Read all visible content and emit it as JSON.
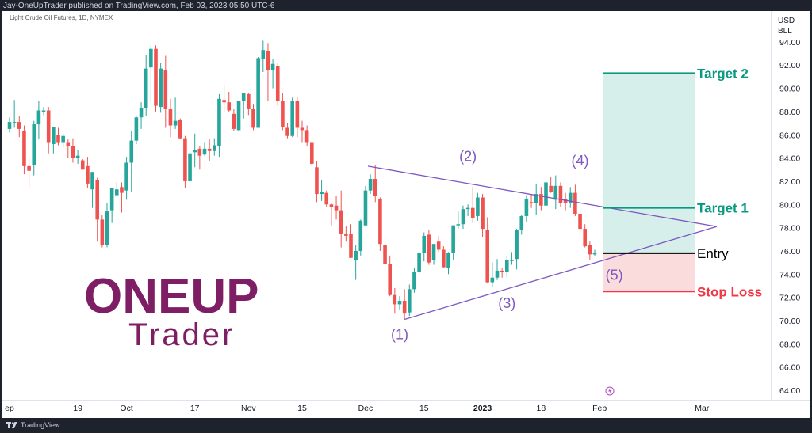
{
  "header": {
    "publish_line": "Jay-OneUpTrader published on TradingView.com, Feb 03, 2023 05:50 UTC-6",
    "symbol_line": "Light Crude Oil Futures, 1D, NYMEX"
  },
  "footer": {
    "brand": "TradingView"
  },
  "logo": {
    "line1": "ONEUP",
    "line2": "Trader"
  },
  "colors": {
    "up": "#26a69a",
    "down": "#ef5350",
    "pattern": "#7e57c2",
    "target": "#089981",
    "stop": "#f23645",
    "entry": "#000000",
    "target_zone": "#d6efea",
    "stop_zone": "#fbdcdc",
    "logo": "#7e1e64"
  },
  "chart_data": {
    "type": "candlestick",
    "yaxis": {
      "unit_lines": [
        "USD",
        "BLL"
      ],
      "ticks": [
        64,
        66,
        68,
        70,
        72,
        74,
        76,
        78,
        80,
        82,
        84,
        86,
        88,
        90,
        92,
        94
      ],
      "range": [
        63,
        96
      ]
    },
    "xaxis": {
      "labels": [
        {
          "i": 0,
          "text": "ep"
        },
        {
          "i": 14,
          "text": "19"
        },
        {
          "i": 24,
          "text": "Oct"
        },
        {
          "i": 38,
          "text": "17"
        },
        {
          "i": 49,
          "text": "Nov"
        },
        {
          "i": 60,
          "text": "15"
        },
        {
          "i": 73,
          "text": "Dec"
        },
        {
          "i": 85,
          "text": "15"
        },
        {
          "i": 97,
          "text": "2023"
        },
        {
          "i": 109,
          "text": "18"
        },
        {
          "i": 121,
          "text": "Feb"
        },
        {
          "i": 142,
          "text": "Mar"
        }
      ]
    },
    "last_price": 75.8,
    "ohlc": [
      [
        86.5,
        87.5,
        86.2,
        87.1
      ],
      [
        87.1,
        89.0,
        86.6,
        87.1
      ],
      [
        87.1,
        87.6,
        85.8,
        86.5
      ],
      [
        86.3,
        86.8,
        82.6,
        83.3
      ],
      [
        83.3,
        84.0,
        81.4,
        82.9
      ],
      [
        83.4,
        87.2,
        82.5,
        86.9
      ],
      [
        86.9,
        88.9,
        85.6,
        88.1
      ],
      [
        88.0,
        88.4,
        87.7,
        88.1
      ],
      [
        88.1,
        88.4,
        84.4,
        85.3
      ],
      [
        85.2,
        86.7,
        84.4,
        86.7
      ],
      [
        86.0,
        86.6,
        85.1,
        85.3
      ],
      [
        85.3,
        86.1,
        84.9,
        85.9
      ],
      [
        85.3,
        85.6,
        84.0,
        85.0
      ],
      [
        85.0,
        85.7,
        83.6,
        84.0
      ],
      [
        84.0,
        84.7,
        83.5,
        84.2
      ],
      [
        83.8,
        83.9,
        83.0,
        83.0
      ],
      [
        83.3,
        84.1,
        81.4,
        81.8
      ],
      [
        81.3,
        82.8,
        79.7,
        82.8
      ],
      [
        82.1,
        82.3,
        76.8,
        78.7
      ],
      [
        78.7,
        79.1,
        76.3,
        76.5
      ],
      [
        76.5,
        80.1,
        76.3,
        79.4
      ],
      [
        79.5,
        81.4,
        78.4,
        81.4
      ],
      [
        80.8,
        81.9,
        80.7,
        81.3
      ],
      [
        81.5,
        81.9,
        79.3,
        81.0
      ],
      [
        81.2,
        84.1,
        80.4,
        83.6
      ],
      [
        83.6,
        86.3,
        81.1,
        85.5
      ],
      [
        85.5,
        87.6,
        85.2,
        87.5
      ],
      [
        87.5,
        88.8,
        86.5,
        88.3
      ],
      [
        88.3,
        92.9,
        87.6,
        91.7
      ],
      [
        91.8,
        93.7,
        88.8,
        93.4
      ],
      [
        93.4,
        93.7,
        88.0,
        88.5
      ],
      [
        88.4,
        92.2,
        87.9,
        91.7
      ],
      [
        91.6,
        92.8,
        86.6,
        88.2
      ],
      [
        88.2,
        89.1,
        85.8,
        86.8
      ],
      [
        86.8,
        89.2,
        86.5,
        87.2
      ],
      [
        87.3,
        87.4,
        85.6,
        85.7
      ],
      [
        85.7,
        85.9,
        81.4,
        82.0
      ],
      [
        82.0,
        84.6,
        81.4,
        84.4
      ],
      [
        84.5,
        86.1,
        83.2,
        84.7
      ],
      [
        84.8,
        85.0,
        83.0,
        84.2
      ],
      [
        84.3,
        85.3,
        84.2,
        84.8
      ],
      [
        84.8,
        85.6,
        83.7,
        84.6
      ],
      [
        84.6,
        85.7,
        84.2,
        85.1
      ],
      [
        85.0,
        89.5,
        84.1,
        89.1
      ],
      [
        89.0,
        90.3,
        87.9,
        88.8
      ],
      [
        88.8,
        89.7,
        88.0,
        88.1
      ],
      [
        87.8,
        88.2,
        86.3,
        86.5
      ],
      [
        86.4,
        88.9,
        86.3,
        88.9
      ],
      [
        88.9,
        89.5,
        87.4,
        89.6
      ],
      [
        89.5,
        89.6,
        87.7,
        88.2
      ],
      [
        88.2,
        88.6,
        86.4,
        86.6
      ],
      [
        86.6,
        92.7,
        86.6,
        92.6
      ],
      [
        92.5,
        94.1,
        91.4,
        93.3
      ],
      [
        93.2,
        93.9,
        88.9,
        91.6
      ],
      [
        91.6,
        92.5,
        90.0,
        92.1
      ],
      [
        91.9,
        92.2,
        88.5,
        88.9
      ],
      [
        88.9,
        89.6,
        86.4,
        86.7
      ],
      [
        86.6,
        87.0,
        85.7,
        85.9
      ],
      [
        85.9,
        89.2,
        85.8,
        88.9
      ],
      [
        88.9,
        89.3,
        85.8,
        86.6
      ],
      [
        86.6,
        87.2,
        85.3,
        86.4
      ],
      [
        86.4,
        86.8,
        85.0,
        85.3
      ],
      [
        85.3,
        85.4,
        83.4,
        83.5
      ],
      [
        83.2,
        83.7,
        80.2,
        80.9
      ],
      [
        80.9,
        82.1,
        80.3,
        81.1
      ],
      [
        81.0,
        81.2,
        79.8,
        80.0
      ],
      [
        80.0,
        80.1,
        78.2,
        79.8
      ],
      [
        79.9,
        80.7,
        78.7,
        79.5
      ],
      [
        79.5,
        81.2,
        76.3,
        77.5
      ],
      [
        77.5,
        78.1,
        76.8,
        77.3
      ],
      [
        77.5,
        78.3,
        75.4,
        75.4
      ],
      [
        75.2,
        76.5,
        73.5,
        76.0
      ],
      [
        76.0,
        78.7,
        75.6,
        78.6
      ],
      [
        78.2,
        81.6,
        78.1,
        81.2
      ],
      [
        81.2,
        82.6,
        80.9,
        82.2
      ],
      [
        82.2,
        83.4,
        80.2,
        80.7
      ],
      [
        80.5,
        80.6,
        76.0,
        76.6
      ],
      [
        76.5,
        77.1,
        74.6,
        74.9
      ],
      [
        74.9,
        75.6,
        72.1,
        72.2
      ],
      [
        72.2,
        72.8,
        70.6,
        71.4
      ],
      [
        71.4,
        72.1,
        70.9,
        71.7
      ],
      [
        71.7,
        72.7,
        70.1,
        70.6
      ],
      [
        70.7,
        73.1,
        70.4,
        72.7
      ],
      [
        72.7,
        74.5,
        72.4,
        74.2
      ],
      [
        74.2,
        75.9,
        74.0,
        75.8
      ],
      [
        75.8,
        77.6,
        75.1,
        77.3
      ],
      [
        77.4,
        77.8,
        74.8,
        75.0
      ],
      [
        75.2,
        76.6,
        74.8,
        76.6
      ],
      [
        76.8,
        77.3,
        75.9,
        76.1
      ],
      [
        76.1,
        76.4,
        74.5,
        74.6
      ],
      [
        74.5,
        75.9,
        74.0,
        75.8
      ],
      [
        75.8,
        78.2,
        75.2,
        78.2
      ],
      [
        78.2,
        79.4,
        77.9,
        78.3
      ],
      [
        78.3,
        79.9,
        77.9,
        79.6
      ],
      [
        79.6,
        80.0,
        79.0,
        79.7
      ],
      [
        79.7,
        81.5,
        78.4,
        78.8
      ],
      [
        79.0,
        81.0,
        78.6,
        80.6
      ],
      [
        80.6,
        80.9,
        77.2,
        77.9
      ],
      [
        77.8,
        78.9,
        73.2,
        73.3
      ],
      [
        73.3,
        75.0,
        72.9,
        73.7
      ],
      [
        73.7,
        75.3,
        73.5,
        74.3
      ],
      [
        74.3,
        74.5,
        73.7,
        74.2
      ],
      [
        74.2,
        75.6,
        73.7,
        75.2
      ],
      [
        75.2,
        75.9,
        74.8,
        75.2
      ],
      [
        75.3,
        77.9,
        74.4,
        77.8
      ],
      [
        77.8,
        79.1,
        77.4,
        79.0
      ],
      [
        79.0,
        80.8,
        78.5,
        80.5
      ],
      [
        80.2,
        80.9,
        79.7,
        80.1
      ],
      [
        80.1,
        81.8,
        79.1,
        80.9
      ],
      [
        80.9,
        81.5,
        79.5,
        79.9
      ],
      [
        79.9,
        82.3,
        79.5,
        81.9
      ],
      [
        81.6,
        82.4,
        81.0,
        81.1
      ],
      [
        80.4,
        82.5,
        79.6,
        81.6
      ],
      [
        81.6,
        81.9,
        79.8,
        80.1
      ],
      [
        80.5,
        81.0,
        79.5,
        80.1
      ],
      [
        80.1,
        81.5,
        79.7,
        81.0
      ],
      [
        81.0,
        81.7,
        79.0,
        79.2
      ],
      [
        79.2,
        79.6,
        77.3,
        77.9
      ],
      [
        77.9,
        78.3,
        76.3,
        76.4
      ],
      [
        76.5,
        76.8,
        75.2,
        75.7
      ],
      [
        75.7,
        76.1,
        75.6,
        75.8
      ]
    ]
  },
  "annotations": {
    "waves": [
      {
        "label": "(1)",
        "i": 80,
        "y": 69.9,
        "pos": "below"
      },
      {
        "label": "(2)",
        "i": 94,
        "y": 83.2,
        "pos": "above"
      },
      {
        "label": "(3)",
        "i": 102,
        "y": 72.6,
        "pos": "below"
      },
      {
        "label": "(4)",
        "i": 117,
        "y": 82.8,
        "pos": "above"
      },
      {
        "label": "(5)",
        "i": 124,
        "y": 75.0,
        "pos": "below"
      }
    ],
    "levels": [
      {
        "label": "Target 2",
        "price": 91.3,
        "kind": "target"
      },
      {
        "label": "Target 1",
        "price": 79.7,
        "kind": "target"
      },
      {
        "label": "Entry",
        "price": 75.8,
        "kind": "entry"
      },
      {
        "label": "Stop Loss",
        "price": 72.5,
        "kind": "stop"
      }
    ]
  }
}
